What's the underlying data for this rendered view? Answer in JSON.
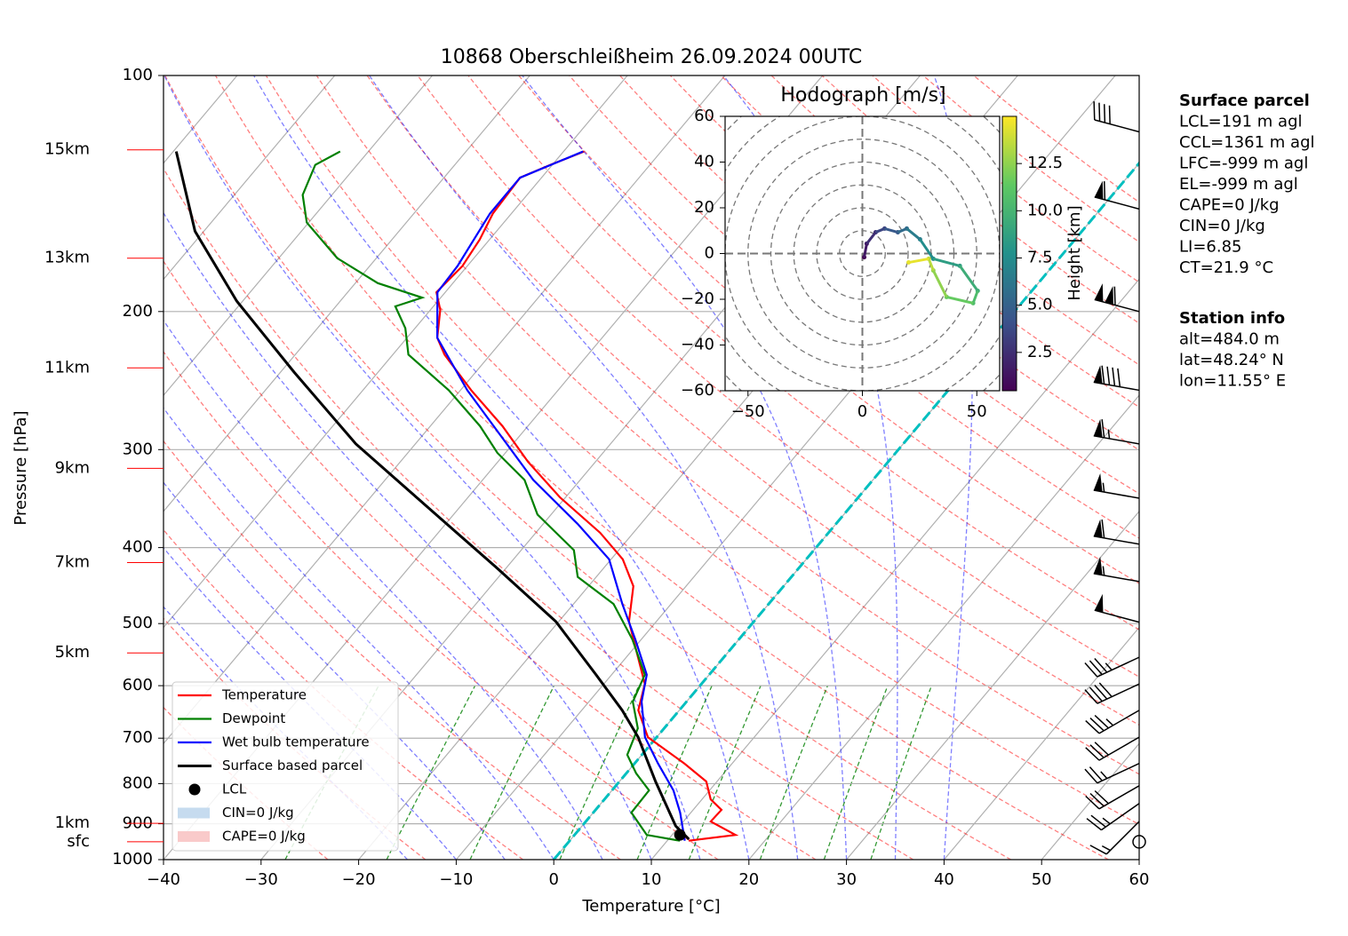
{
  "chart_data": {
    "type": "skewt",
    "title": "10868 Oberschleißheim 26.09.2024 00UTC",
    "x_label": "Temperature [°C]",
    "y_label": "Pressure [hPa]",
    "xlim": [
      -40,
      60
    ],
    "xticks": [
      {
        "value": -40,
        "label": "−40"
      },
      {
        "value": -30,
        "label": "−30"
      },
      {
        "value": -20,
        "label": "−20"
      },
      {
        "value": -10,
        "label": "−10"
      },
      0,
      10,
      20,
      30,
      40,
      50,
      60
    ],
    "ylim": [
      1000,
      100
    ],
    "yticks": [
      100,
      200,
      300,
      400,
      500,
      600,
      700,
      800,
      900,
      1000
    ],
    "log_scale": true,
    "grid": true,
    "freezing_isotherm": 0,
    "series": [
      {
        "name": "Temperature",
        "color": "#ff0000",
        "pressure": [
          946,
          930,
          894,
          864,
          838,
          795,
          754,
          698,
          645,
          597,
          552,
          497,
          448,
          414,
          383,
          345,
          311,
          280,
          252,
          227,
          216,
          199,
          189,
          175,
          162,
          150,
          135,
          130,
          125
        ],
        "values": [
          12.2,
          16.5,
          12.8,
          12.9,
          10.9,
          8.9,
          5.1,
          -0.9,
          -4.2,
          -5.8,
          -8.8,
          -12.8,
          -15.4,
          -18.8,
          -23.4,
          -30.6,
          -36.9,
          -42.6,
          -48.9,
          -54.7,
          -56.9,
          -59,
          -60.9,
          -60.5,
          -61,
          -61.9,
          -62.2,
          -60.2,
          -57.9
        ]
      },
      {
        "name": "Dewpoint",
        "color": "#008000",
        "pressure": [
          946,
          930,
          871,
          816,
          776,
          735,
          680,
          629,
          581,
          524,
          472,
          436,
          403,
          363,
          328,
          303,
          280,
          252,
          227,
          210,
          197,
          192,
          184,
          171,
          154,
          142,
          130,
          125
        ],
        "values": [
          11.3,
          7.4,
          3.9,
          3.8,
          1.0,
          -1.5,
          -2.7,
          -5.5,
          -6.6,
          -10.9,
          -15.9,
          -21.9,
          -24.6,
          -31.4,
          -35.7,
          -40.8,
          -44.9,
          -51.2,
          -58.4,
          -61,
          -63.9,
          -61.9,
          -67.7,
          -74,
          -80.2,
          -83,
          -84.3,
          -82.9
        ]
      },
      {
        "name": "Wet bulb temperature",
        "color": "#0000ff",
        "pressure": [
          946,
          871,
          816,
          754,
          698,
          629,
          581,
          524,
          472,
          414,
          373,
          328,
          280,
          252,
          216,
          189,
          175,
          150,
          135,
          125
        ],
        "values": [
          11.8,
          8.9,
          6.3,
          2.4,
          -1.2,
          -4.6,
          -6.4,
          -10.6,
          -15,
          -20.2,
          -26.5,
          -34.8,
          -43.5,
          -49.3,
          -56.9,
          -60.8,
          -61,
          -62.2,
          -62.2,
          -58
        ]
      },
      {
        "name": "Surface based parcel",
        "color": "#000000",
        "pressure": [
          942,
          906,
          795,
          698,
          645,
          581,
          497,
          425,
          363,
          295,
          239,
          194,
          158,
          125
        ],
        "values": [
          12.1,
          9.6,
          3.7,
          -1.9,
          -5.85,
          -11.6,
          -20.3,
          -30.9,
          -41.8,
          -56.1,
          -68.6,
          -80.6,
          -90.9,
          -99.7
        ]
      }
    ],
    "lcl": {
      "name": "LCL",
      "pressure": 930,
      "temperature": 10.8
    },
    "cin": {
      "name": "CIN=0 J/kg",
      "color": "#c6dbef"
    },
    "cape": {
      "name": "CAPE=0 J/kg",
      "color": "#f9caca"
    },
    "legend": "lower left",
    "height_labels": [
      {
        "label": "15km",
        "pressure": 124.4
      },
      {
        "label": "13km",
        "pressure": 171
      },
      {
        "label": "11km",
        "pressure": 236
      },
      {
        "label": "9km",
        "pressure": 317
      },
      {
        "label": "7km",
        "pressure": 418
      },
      {
        "label": "5km",
        "pressure": 545
      },
      {
        "label": "1km",
        "pressure": 899
      },
      {
        "label": "sfc",
        "pressure": 949
      }
    ],
    "wind": {
      "pressure": [
        949,
        894,
        848,
        805,
        754,
        698,
        645,
        597,
        552,
        498,
        442,
        396,
        346,
        295,
        252,
        200,
        148,
        118
      ],
      "speed": [
        0,
        15,
        25,
        30,
        25,
        30,
        35,
        40,
        35,
        50,
        55,
        60,
        55,
        65,
        90,
        110,
        60,
        40
      ],
      "direction": [
        0,
        225,
        235,
        240,
        245,
        240,
        240,
        245,
        245,
        285,
        280,
        280,
        280,
        280,
        280,
        285,
        285,
        285
      ]
    },
    "hodograph": {
      "title": "Hodograph [m/s]",
      "xlim": [
        -60,
        60
      ],
      "ylim": [
        -60,
        60
      ],
      "xticks": [
        {
          "value": -50,
          "label": "−50"
        },
        0,
        50
      ],
      "yticks": [
        {
          "value": -60,
          "label": "−60"
        },
        {
          "value": -40,
          "label": "−40"
        },
        {
          "value": -20,
          "label": "−20"
        },
        0,
        20,
        40,
        60
      ],
      "u": [
        0.8,
        1.9,
        5.8,
        9.7,
        15.5,
        19.4,
        25.2,
        31,
        42.6,
        50.4,
        48.4,
        36.8,
        31,
        29,
        20.2
      ],
      "v": [
        -1.6,
        4.3,
        9.3,
        10.9,
        9.3,
        10.9,
        6.2,
        -2.3,
        -5.4,
        -16.3,
        -21.7,
        -19,
        -7.4,
        -2.3,
        -3.9
      ],
      "height": [
        0.5,
        1.5,
        2.5,
        3.5,
        4.5,
        5.5,
        6.5,
        7.5,
        8.5,
        9.5,
        10.5,
        11.5,
        12.5,
        13.5,
        14.5
      ],
      "colorbar_label": "Height [km]",
      "clim": [
        0.47,
        15.0
      ],
      "cticks": [
        2.5,
        5.0,
        7.5,
        10.0,
        12.5
      ]
    },
    "annotations": {
      "surface_parcel": {
        "title": "Surface parcel",
        "lines": [
          "LCL=191 m agl",
          "CCL=1361 m agl",
          "LFC=-999 m agl",
          "EL=-999 m agl",
          "CAPE=0 J/kg",
          "CIN=0 J/kg",
          "LI=6.85",
          "CT=21.9 °C"
        ]
      },
      "station": {
        "title": "Station info",
        "lines": [
          "alt=484.0 m",
          "lat=48.24° N",
          "lon=11.55° E"
        ]
      }
    }
  }
}
